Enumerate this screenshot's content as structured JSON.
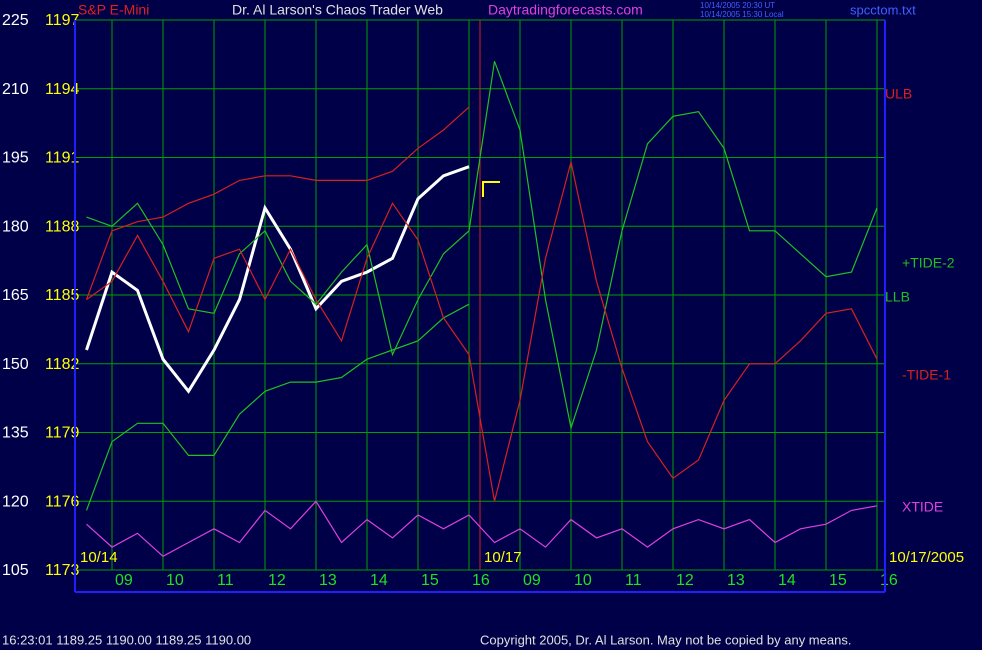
{
  "chart_data": {
    "type": "line",
    "header": {
      "symbol": "S&P E-Mini",
      "title": "Dr. Al Larson's Chaos Trader Web",
      "site": "Daytradingforecasts.com",
      "stamp_ut": "10/14/2005 20:30 UT",
      "stamp_local": "10/14/2005 15:30 Local",
      "file": "spcctom.txt"
    },
    "footer": {
      "quote": "16:23:01  1189.25 1190.00 1189.25 1190.00",
      "copyright": "Copyright 2005, Dr. Al Larson. May not be copied by any means."
    },
    "annotations": [
      "10/14",
      "10/17",
      "10/17/2005"
    ],
    "categories": [
      null,
      "09",
      null,
      "10",
      null,
      "11",
      null,
      "12",
      null,
      "13",
      null,
      "14",
      null,
      "15",
      null,
      "16",
      null,
      "09",
      null,
      "10",
      null,
      "11",
      null,
      "12",
      null,
      "13",
      null,
      "14",
      null,
      "15",
      null,
      "16"
    ],
    "ylim": [
      105,
      225
    ],
    "yticks": [
      105,
      120,
      135,
      150,
      165,
      180,
      195,
      210,
      225
    ],
    "y2lim": [
      1173,
      1197
    ],
    "y2ticks": [
      1173,
      1176,
      1179,
      1182,
      1185,
      1188,
      1191,
      1194,
      1197
    ],
    "grid": true,
    "series": [
      {
        "color": "#ffffff",
        "values": [
          153,
          170,
          166,
          151,
          144,
          153,
          164,
          184,
          175,
          162,
          168,
          170,
          173,
          186,
          191,
          193,
          null,
          null,
          null,
          null,
          null,
          null,
          null,
          null,
          null,
          null,
          null,
          null,
          null,
          null,
          null,
          null
        ]
      },
      {
        "name": "ULB",
        "color": "#d82020",
        "values": [
          164,
          179,
          181,
          182,
          185,
          187,
          190,
          191,
          191,
          190,
          190,
          190,
          192,
          197,
          201,
          206,
          null,
          null,
          null,
          null,
          null,
          null,
          null,
          null,
          null,
          null,
          null,
          null,
          null,
          null,
          null,
          null
        ]
      },
      {
        "name": "+TIDE-2",
        "color": "#20c020",
        "values": [
          182,
          180,
          185,
          176,
          162,
          161,
          174,
          179,
          168,
          163,
          170,
          176,
          152,
          164,
          174,
          179,
          216,
          201,
          164,
          136,
          153,
          179,
          198,
          204,
          205,
          197,
          179,
          179,
          174,
          169,
          170,
          184
        ]
      },
      {
        "name": "LLB",
        "color": "#20c020",
        "values": [
          118,
          133,
          137,
          137,
          130,
          130,
          139,
          144,
          146,
          146,
          147,
          151,
          153,
          155,
          160,
          163,
          null,
          null,
          null,
          null,
          null,
          null,
          null,
          null,
          null,
          null,
          null,
          null,
          null,
          null,
          null,
          null
        ]
      },
      {
        "name": "-TIDE-1",
        "color": "#d82020",
        "values": [
          164,
          168,
          178,
          168,
          157,
          173,
          175,
          164,
          175,
          164,
          155,
          173,
          185,
          177,
          160,
          152,
          120,
          142,
          173,
          194,
          168,
          149,
          133,
          125,
          129,
          142,
          150,
          150,
          155,
          161,
          162,
          151
        ]
      },
      {
        "name": "XTIDE",
        "color": "#e040e0",
        "values": [
          115,
          110,
          113,
          108,
          111,
          114,
          111,
          118,
          114,
          120,
          111,
          116,
          112,
          117,
          114,
          117,
          111,
          114,
          110,
          116,
          112,
          114,
          110,
          114,
          116,
          114,
          116,
          111,
          114,
          115,
          118,
          119
        ]
      }
    ]
  }
}
